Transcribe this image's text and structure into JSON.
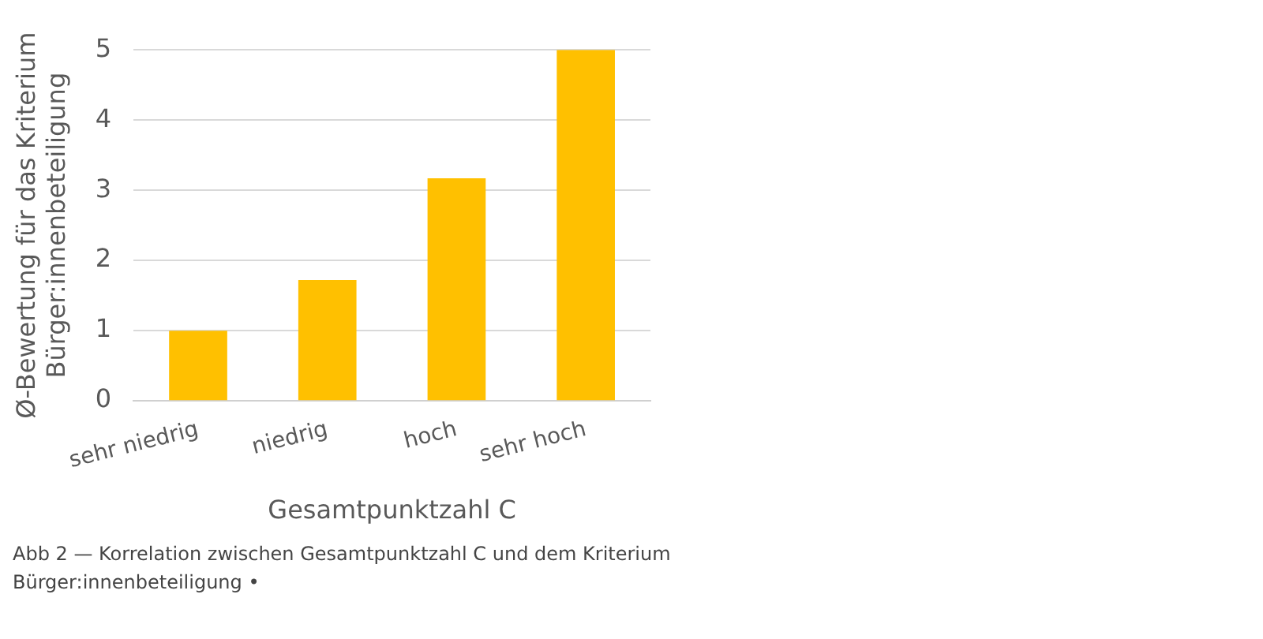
{
  "chart_data": {
    "type": "bar",
    "xlabel": "Gesamtpunktzahl C",
    "ylabel": "Ø-Bewertung für das Kriterium\nBürger:innenbeteiligung",
    "categories": [
      "sehr niedrig",
      "niedrig",
      "hoch",
      "sehr hoch"
    ],
    "values": [
      1.0,
      1.72,
      3.17,
      5.0
    ],
    "color": "#ffc000",
    "ylim": [
      0,
      5
    ],
    "yticks": [
      0,
      1,
      2,
      3,
      4,
      5
    ],
    "grid": "y",
    "legend": false,
    "annotations": [
      "Abb 2 — Korrelation zwischen Gesamtpunktzahl C und dem Kriterium Bürger:innenbeteiligung •"
    ]
  }
}
